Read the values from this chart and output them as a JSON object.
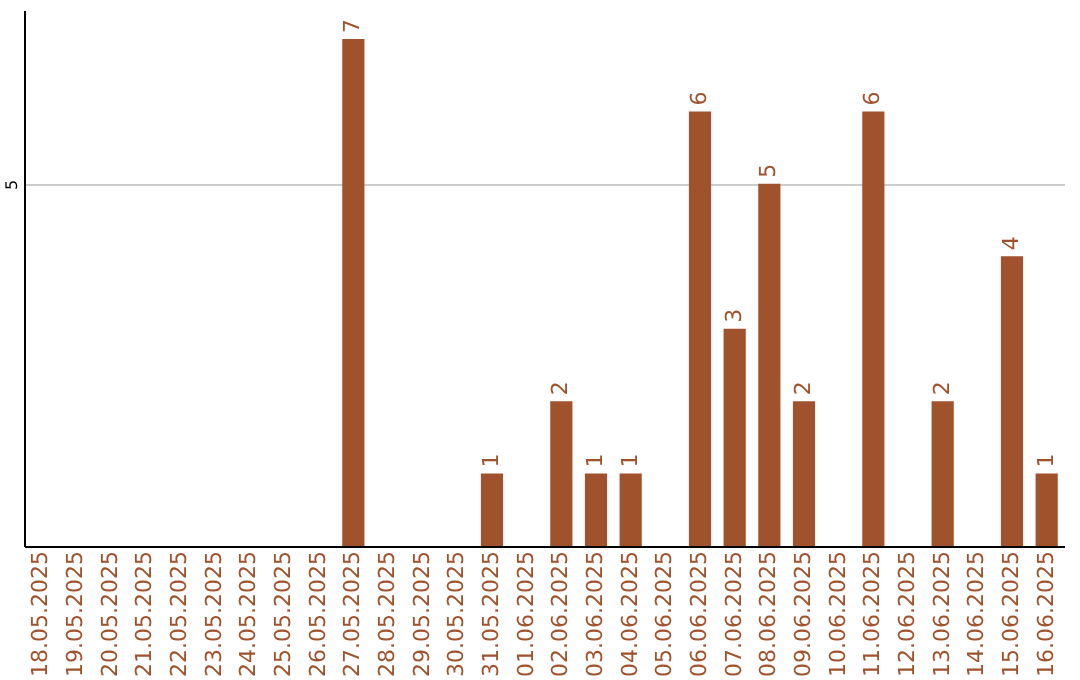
{
  "chart_data": {
    "type": "bar",
    "categories": [
      "18.05.2025",
      "19.05.2025",
      "20.05.2025",
      "21.05.2025",
      "22.05.2025",
      "23.05.2025",
      "24.05.2025",
      "25.05.2025",
      "26.05.2025",
      "27.05.2025",
      "28.05.2025",
      "29.05.2025",
      "30.05.2025",
      "31.05.2025",
      "01.06.2025",
      "02.06.2025",
      "03.06.2025",
      "04.06.2025",
      "05.06.2025",
      "06.06.2025",
      "07.06.2025",
      "08.06.2025",
      "09.06.2025",
      "10.06.2025",
      "11.06.2025",
      "12.06.2025",
      "13.06.2025",
      "14.06.2025",
      "15.06.2025",
      "16.06.2025"
    ],
    "values": [
      0,
      0,
      0,
      0,
      0,
      0,
      0,
      0,
      0,
      7,
      0,
      0,
      0,
      1,
      0,
      2,
      1,
      1,
      0,
      6,
      3,
      5,
      2,
      0,
      6,
      0,
      2,
      0,
      4,
      1
    ],
    "value_labels": [
      null,
      null,
      null,
      null,
      null,
      null,
      null,
      null,
      null,
      "7",
      null,
      null,
      null,
      "1",
      null,
      "2",
      "1",
      "1",
      null,
      "6",
      "3",
      "5",
      "2",
      null,
      "6",
      null,
      "2",
      null,
      "4",
      "1"
    ],
    "color": "#a0522d",
    "ylim": [
      0,
      7.4
    ],
    "yticks": [
      5
    ],
    "grid": "y"
  }
}
